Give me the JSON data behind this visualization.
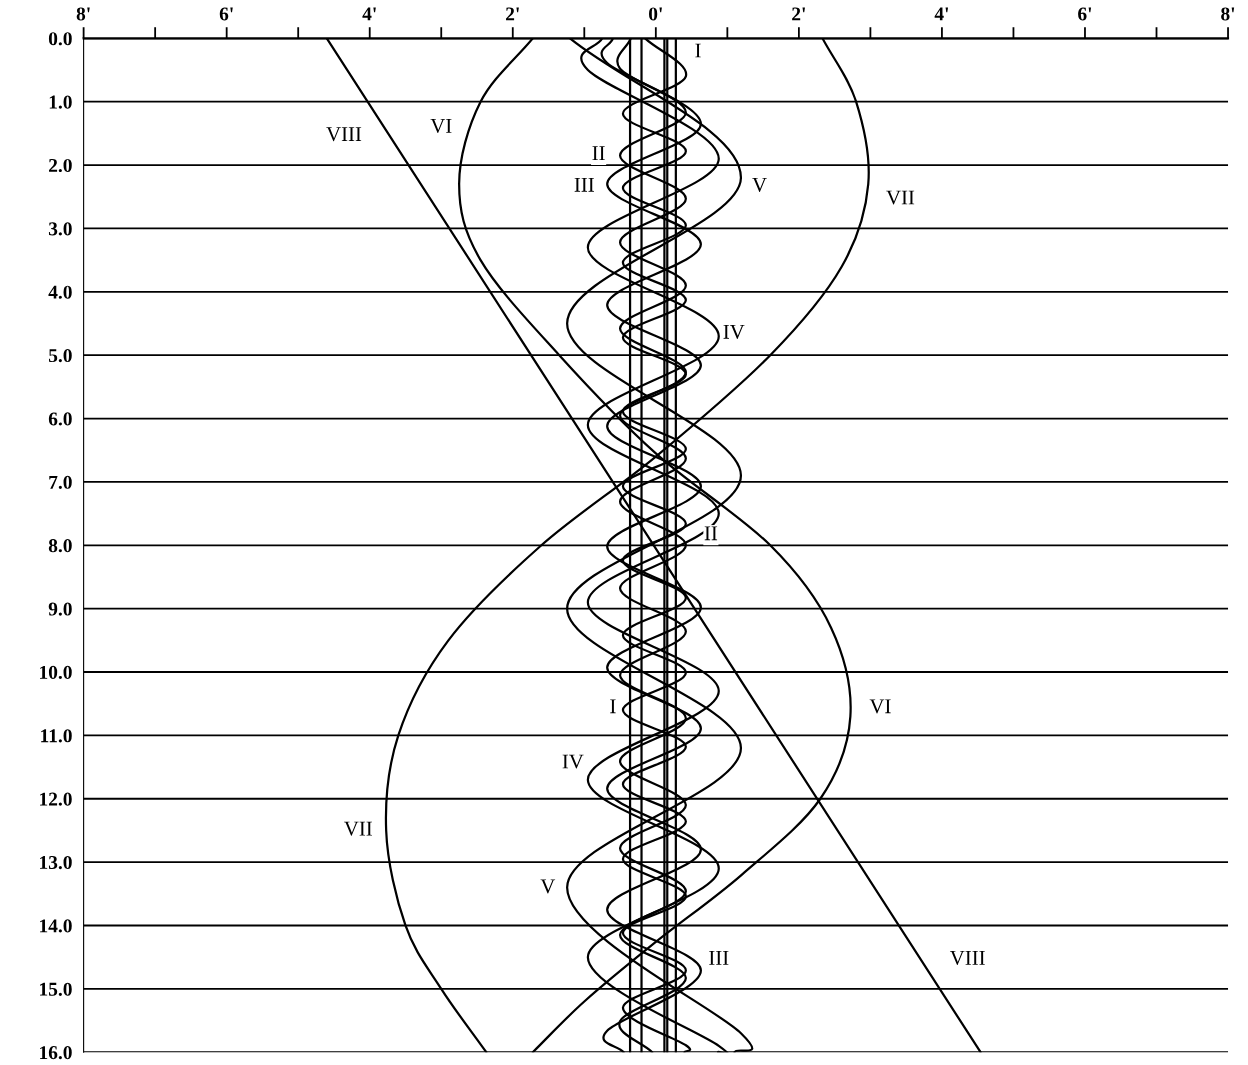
{
  "chart_data": {
    "type": "line",
    "orientation": "horizontal",
    "xlim": [
      -8,
      8
    ],
    "ylim": [
      16,
      0
    ],
    "xticks": [
      {
        "value": -8,
        "label": "8'"
      },
      {
        "value": -7,
        "label": null
      },
      {
        "value": -6,
        "label": "6'"
      },
      {
        "value": -5,
        "label": null
      },
      {
        "value": -4,
        "label": "4'"
      },
      {
        "value": -3,
        "label": null
      },
      {
        "value": -2,
        "label": "2'"
      },
      {
        "value": -1,
        "label": null
      },
      {
        "value": 0,
        "label": "0'"
      },
      {
        "value": 1,
        "label": null
      },
      {
        "value": 2,
        "label": "2'"
      },
      {
        "value": 3,
        "label": null
      },
      {
        "value": 4,
        "label": "4'"
      },
      {
        "value": 5,
        "label": null
      },
      {
        "value": 6,
        "label": "6'"
      },
      {
        "value": 7,
        "label": null
      },
      {
        "value": 8,
        "label": "8'"
      }
    ],
    "yticks": [
      {
        "value": 0,
        "label": "0.0"
      },
      {
        "value": 1,
        "label": "1.0"
      },
      {
        "value": 2,
        "label": "2.0"
      },
      {
        "value": 3,
        "label": "3.0"
      },
      {
        "value": 4,
        "label": "4.0"
      },
      {
        "value": 5,
        "label": "5.0"
      },
      {
        "value": 6,
        "label": "6.0"
      },
      {
        "value": 7,
        "label": "7.0"
      },
      {
        "value": 8,
        "label": "8.0"
      },
      {
        "value": 9,
        "label": "9.0"
      },
      {
        "value": 10,
        "label": "10.0"
      },
      {
        "value": 11,
        "label": "11.0"
      },
      {
        "value": 12,
        "label": "12.0"
      },
      {
        "value": 13,
        "label": "13.0"
      },
      {
        "value": 14,
        "label": "14.0"
      },
      {
        "value": 15,
        "label": "15.0"
      },
      {
        "value": 16,
        "label": "16.0"
      }
    ],
    "grid": "y",
    "legend": false,
    "marker": "none",
    "line_style": "solid",
    "series": [
      {
        "color": "#000000",
        "x": [
          0,
          0.6,
          1.19,
          1.78,
          2.36,
          2.95,
          3.54,
          4.13,
          4.72,
          5.3,
          5.89,
          6.48,
          7.07,
          7.66,
          8.24,
          8.83,
          9.42,
          10.01,
          10.6,
          11.18,
          11.77,
          12.36,
          12.95,
          13.54,
          14.12,
          14.71,
          15.3,
          15.89,
          16
        ],
        "values": [
          -0.15,
          0.42,
          -0.46,
          0.42,
          -0.46,
          0.42,
          -0.46,
          0.42,
          -0.46,
          0.42,
          -0.46,
          0.42,
          -0.46,
          0.42,
          -0.46,
          0.42,
          -0.46,
          0.42,
          -0.46,
          0.42,
          -0.46,
          0.42,
          -0.46,
          0.42,
          -0.46,
          0.42,
          -0.46,
          0.42,
          0.4
        ]
      },
      {
        "color": "#000000",
        "x": [
          0,
          0.48,
          1.17,
          1.85,
          2.53,
          3.22,
          3.9,
          4.58,
          5.27,
          5.95,
          6.63,
          7.31,
          8.0,
          8.68,
          9.36,
          10.05,
          10.73,
          11.41,
          12.1,
          12.78,
          13.46,
          14.15,
          14.83,
          15.51,
          16
        ],
        "values": [
          -0.35,
          -0.5,
          0.42,
          -0.5,
          0.42,
          -0.5,
          0.42,
          -0.5,
          0.42,
          -0.5,
          0.42,
          -0.5,
          0.42,
          -0.5,
          0.42,
          -0.5,
          0.42,
          -0.5,
          0.42,
          -0.5,
          0.42,
          -0.5,
          0.42,
          -0.5,
          -0.05
        ]
      },
      {
        "color": "#000000",
        "x": [
          0,
          0.39,
          1.35,
          2.3,
          3.25,
          4.21,
          5.16,
          6.12,
          7.07,
          8.02,
          8.98,
          9.93,
          10.89,
          11.84,
          12.8,
          13.75,
          14.71,
          15.66,
          16
        ],
        "values": [
          -0.6,
          -0.68,
          0.63,
          -0.68,
          0.63,
          -0.68,
          0.63,
          -0.68,
          0.63,
          -0.68,
          0.63,
          -0.68,
          0.63,
          -0.68,
          0.63,
          -0.68,
          0.63,
          -0.68,
          -0.45
        ]
      },
      {
        "color": "#000000",
        "x": [
          0,
          0.5,
          1.9,
          3.3,
          4.7,
          6.1,
          7.5,
          8.9,
          10.3,
          11.7,
          13.1,
          14.5,
          15.9,
          16
        ],
        "values": [
          -0.75,
          -0.95,
          0.88,
          -0.95,
          0.88,
          -0.95,
          0.88,
          -0.95,
          0.88,
          -0.95,
          0.88,
          -0.95,
          0.88,
          0.87
        ]
      },
      {
        "color": "#000000",
        "x": [
          0,
          2.2,
          4.5,
          6.9,
          9.0,
          11.2,
          13.4,
          15.7,
          16
        ],
        "values": [
          -1.2,
          1.19,
          -1.24,
          1.19,
          -1.24,
          1.19,
          -1.24,
          1.19,
          1.1
        ]
      },
      {
        "color": "#000000",
        "x": [
          0,
          1.0,
          2.3,
          3.5,
          5.0,
          6.55,
          8.0,
          9.3,
          10.7,
          12.0,
          13.2,
          14.26,
          15.2,
          16
        ],
        "values": [
          -1.72,
          -2.45,
          -2.75,
          -2.45,
          -1.35,
          0,
          1.6,
          2.45,
          2.72,
          2.3,
          1.2,
          0,
          -1.0,
          -1.72
        ]
      },
      {
        "color": "#000000",
        "x": [
          0,
          1.0,
          2.3,
          3.6,
          5.0,
          6.6,
          8.0,
          9.5,
          11.0,
          12.5,
          14.0,
          15.0,
          16
        ],
        "values": [
          2.33,
          2.8,
          2.97,
          2.6,
          1.6,
          0,
          -1.6,
          -2.9,
          -3.6,
          -3.77,
          -3.5,
          -3.0,
          -2.37
        ]
      },
      {
        "color": "#000000",
        "x": [
          0,
          16
        ],
        "values": [
          -4.6,
          4.54
        ]
      },
      {
        "color": "#000000",
        "x": [
          0,
          16
        ],
        "values": [
          -0.36,
          -0.36
        ]
      },
      {
        "color": "#000000",
        "x": [
          0,
          16
        ],
        "values": [
          -0.2,
          -0.2
        ]
      },
      {
        "color": "#000000",
        "x": [
          0,
          16
        ],
        "values": [
          0.12,
          0.12
        ]
      },
      {
        "color": "#000000",
        "x": [
          0,
          16
        ],
        "values": [
          0.16,
          0.16
        ]
      },
      {
        "color": "#000000",
        "x": [
          0,
          16
        ],
        "values": [
          0.28,
          0.28
        ]
      }
    ],
    "annotations": [
      {
        "text": "I",
        "x": 0.59,
        "y": 0.22
      },
      {
        "text": "I",
        "x": -0.6,
        "y": 10.57
      },
      {
        "text": "II",
        "x": -0.8,
        "y": 1.84
      },
      {
        "text": "II",
        "x": 0.77,
        "y": 7.84
      },
      {
        "text": "III",
        "x": -1.0,
        "y": 2.34
      },
      {
        "text": "III",
        "x": 0.88,
        "y": 14.54
      },
      {
        "text": "IV",
        "x": 1.09,
        "y": 4.66
      },
      {
        "text": "IV",
        "x": -1.16,
        "y": 11.44
      },
      {
        "text": "V",
        "x": 1.45,
        "y": 2.34
      },
      {
        "text": "V",
        "x": -1.51,
        "y": 13.41
      },
      {
        "text": "VI",
        "x": -3.0,
        "y": 1.41
      },
      {
        "text": "VI",
        "x": 3.14,
        "y": 10.57
      },
      {
        "text": "VII",
        "x": 3.42,
        "y": 2.54
      },
      {
        "text": "VII",
        "x": -4.16,
        "y": 12.5
      },
      {
        "text": "VIII",
        "x": -4.36,
        "y": 1.54
      },
      {
        "text": "VIII",
        "x": 4.36,
        "y": 14.54
      }
    ]
  }
}
